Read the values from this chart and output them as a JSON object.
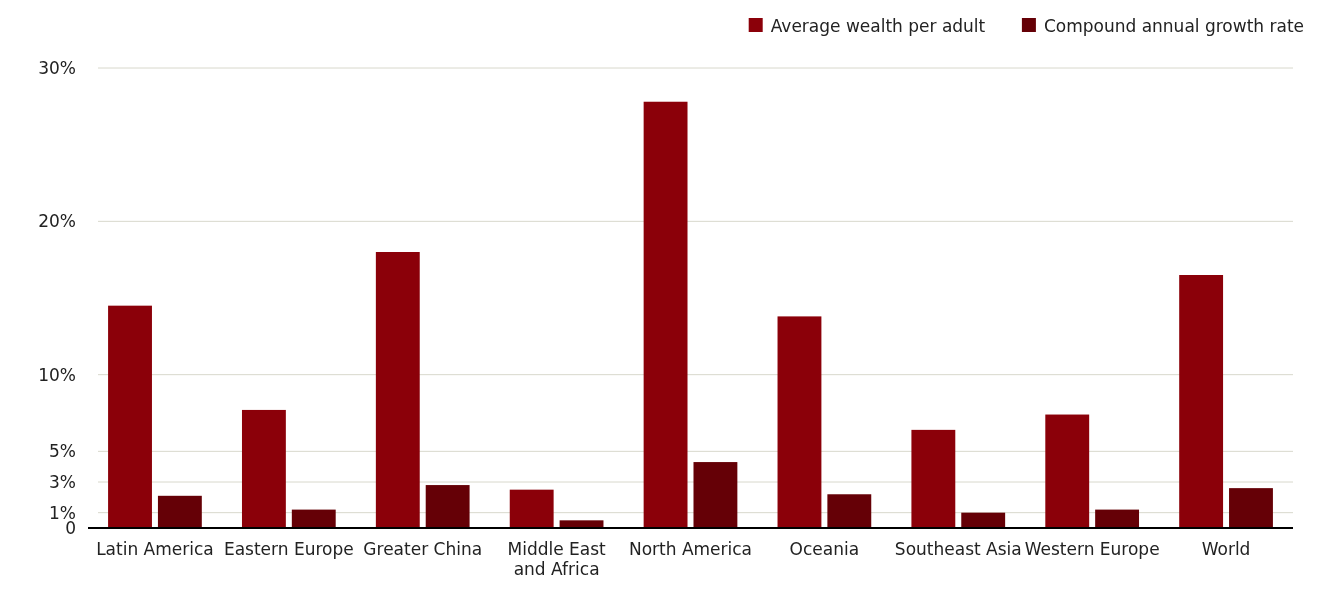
{
  "chart_data": {
    "type": "bar",
    "categories": [
      "Latin America",
      "Eastern Europe",
      "Greater China",
      "Middle East and Africa",
      "North America",
      "Oceania",
      "Southeast Asia",
      "Western Europe",
      "World"
    ],
    "series": [
      {
        "name": "Average wealth per adult",
        "color": "#8b0009",
        "values": [
          14.5,
          7.7,
          18.0,
          2.5,
          27.8,
          13.8,
          6.4,
          7.4,
          16.5
        ]
      },
      {
        "name": "Compound annual growth rate",
        "color": "#650006",
        "values": [
          2.1,
          1.2,
          2.8,
          0.5,
          4.3,
          2.2,
          1.0,
          1.2,
          2.6
        ]
      }
    ],
    "ylim": [
      0,
      30
    ],
    "yticks": [
      0,
      {
        "value": 1,
        "label": "1%"
      },
      {
        "value": 3,
        "label": "3%"
      },
      {
        "value": 5,
        "label": "5%"
      },
      {
        "value": 10,
        "label": "10%"
      },
      {
        "value": 20,
        "label": "20%"
      },
      {
        "value": 30,
        "label": "30%"
      }
    ],
    "grid": "y",
    "legend": "top right"
  }
}
